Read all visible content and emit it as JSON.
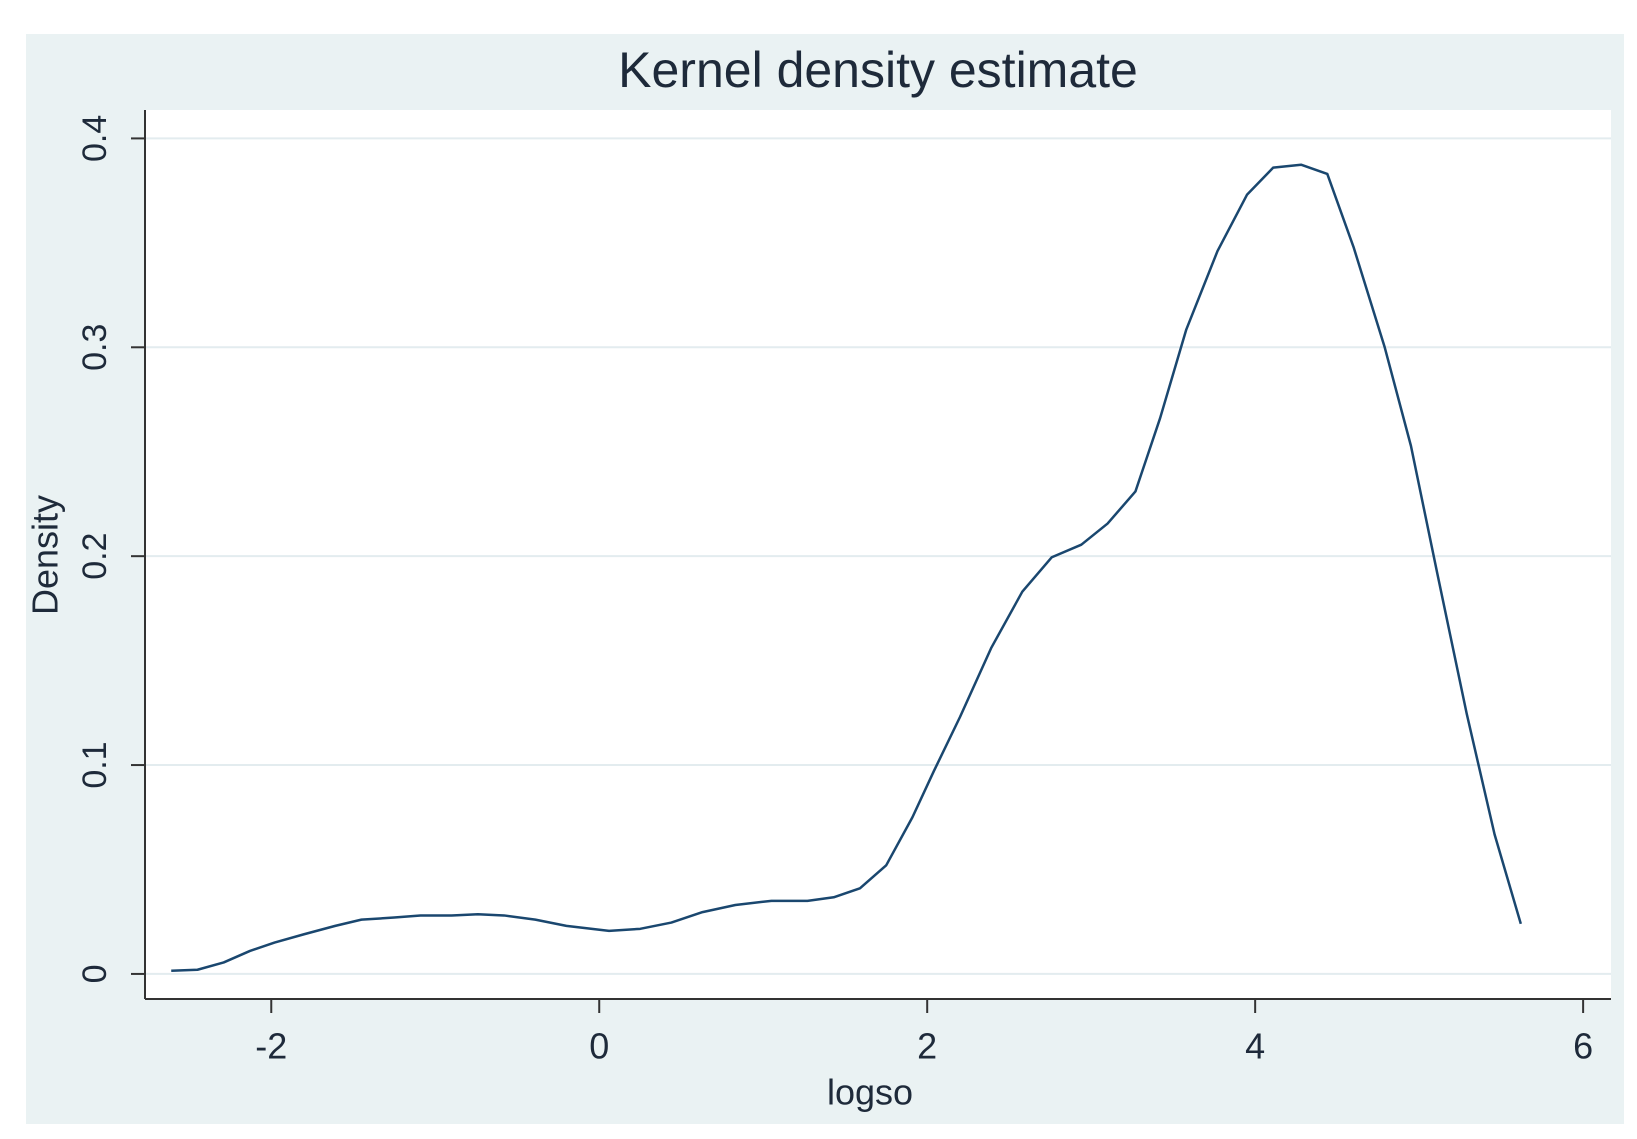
{
  "chart_data": {
    "type": "line",
    "title": "Kernel density estimate",
    "x_label": "logso",
    "y_label": "Density",
    "x": [
      -2.61,
      -2.45,
      -2.29,
      -2.13,
      -1.98,
      -1.8,
      -1.61,
      -1.45,
      -1.25,
      -1.09,
      -0.9,
      -0.74,
      -0.58,
      -0.39,
      -0.2,
      0.06,
      0.25,
      0.44,
      0.63,
      0.83,
      1.05,
      1.27,
      1.43,
      1.59,
      1.75,
      1.91,
      2.04,
      2.2,
      2.39,
      2.58,
      2.76,
      2.94,
      3.1,
      3.27,
      3.42,
      3.58,
      3.77,
      3.95,
      4.11,
      4.28,
      4.44,
      4.6,
      4.79,
      4.95,
      5.11,
      5.29,
      5.46,
      5.62
    ],
    "series": [
      {
        "color": "#1a476f",
        "values": [
          0.0015,
          0.002,
          0.0055,
          0.011,
          0.015,
          0.019,
          0.023,
          0.026,
          0.027,
          0.028,
          0.028,
          0.0286,
          0.028,
          0.026,
          0.023,
          0.0206,
          0.0216,
          0.0246,
          0.0296,
          0.033,
          0.035,
          0.035,
          0.0367,
          0.041,
          0.052,
          0.075,
          0.097,
          0.123,
          0.156,
          0.183,
          0.1995,
          0.2055,
          0.2156,
          0.231,
          0.266,
          0.3085,
          0.346,
          0.373,
          0.386,
          0.3874,
          0.383,
          0.348,
          0.3,
          0.2528,
          0.192,
          0.1246,
          0.0668,
          0.024
        ]
      }
    ],
    "xlim": [
      -2.77,
      6.17
    ],
    "ylim": [
      -0.012,
      0.4136
    ],
    "xticks": [
      -2,
      0,
      2,
      4,
      6
    ],
    "yticks": [
      0,
      0.1,
      0.2,
      0.3,
      0.4
    ],
    "grid": true
  }
}
